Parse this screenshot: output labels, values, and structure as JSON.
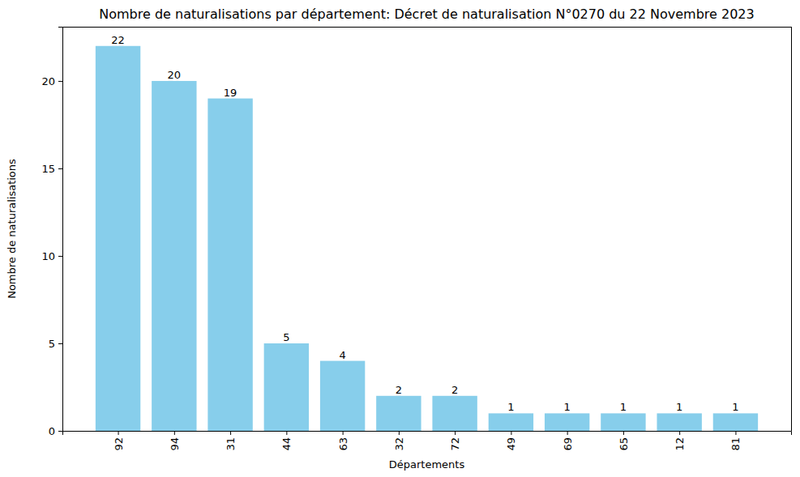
{
  "chart_data": {
    "type": "bar",
    "title": "Nombre de naturalisations par département: Décret de naturalisation N°0270 du 22 Novembre 2023",
    "x_label": "Départements",
    "y_label": "Nombre de naturalisations",
    "categories": [
      "92",
      "94",
      "31",
      "44",
      "63",
      "32",
      "72",
      "49",
      "69",
      "65",
      "12",
      "81"
    ],
    "values": [
      22,
      20,
      19,
      5,
      4,
      2,
      2,
      1,
      1,
      1,
      1,
      1
    ],
    "color": "#87ceeb",
    "ylim": [
      0,
      23.1
    ],
    "yticks": [
      0,
      5,
      10,
      15,
      20
    ],
    "grid": false,
    "data_labels": true
  }
}
